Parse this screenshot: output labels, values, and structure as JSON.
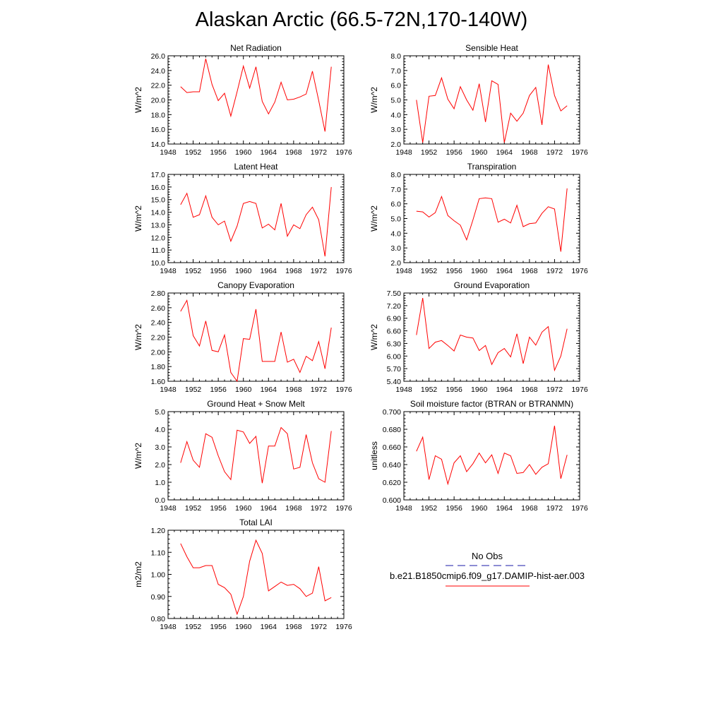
{
  "title": "Alaskan Arctic (66.5-72N,170-140W)",
  "legend": {
    "obs_label": "No Obs",
    "obs_color": "#1a1aa8",
    "model_label": "b.e21.B1850cmip6.f09_g17.DAMIP-hist-aer.003",
    "model_color": "#ff0000"
  },
  "chart_data": [
    {
      "type": "line",
      "title": "Net Radiation",
      "ylabel": "W/m^2",
      "xlim": [
        1948,
        1976
      ],
      "ylim": [
        14.0,
        26.0
      ],
      "xticks": [
        "1948",
        "1952",
        "1956",
        "1960",
        "1964",
        "1968",
        "1972",
        "1976"
      ],
      "yticks": [
        "14.0",
        "16.0",
        "18.0",
        "20.0",
        "22.0",
        "24.0",
        "26.0"
      ],
      "x": [
        1950,
        1951,
        1952,
        1953,
        1954,
        1955,
        1956,
        1957,
        1958,
        1959,
        1960,
        1961,
        1962,
        1963,
        1964,
        1965,
        1966,
        1967,
        1968,
        1969,
        1970,
        1971,
        1972,
        1973,
        1974
      ],
      "series": [
        {
          "name": "b.e21.B1850cmip6.f09_g17.DAMIP-hist-aer.003",
          "values": [
            21.8,
            21.0,
            21.1,
            21.1,
            25.6,
            22.1,
            19.9,
            20.9,
            17.8,
            21.1,
            24.6,
            21.6,
            24.5,
            19.8,
            18.1,
            19.7,
            22.4,
            20.0,
            20.1,
            20.4,
            20.8,
            23.9,
            19.9,
            15.7,
            24.5
          ]
        }
      ]
    },
    {
      "type": "line",
      "title": "Sensible Heat",
      "ylabel": "W/m^2",
      "xlim": [
        1948,
        1976
      ],
      "ylim": [
        2.0,
        8.0
      ],
      "xticks": [
        "1948",
        "1952",
        "1956",
        "1960",
        "1964",
        "1968",
        "1972",
        "1976"
      ],
      "yticks": [
        "2.0",
        "3.0",
        "4.0",
        "5.0",
        "6.0",
        "7.0",
        "8.0"
      ],
      "x": [
        1950,
        1951,
        1952,
        1953,
        1954,
        1955,
        1956,
        1957,
        1958,
        1959,
        1960,
        1961,
        1962,
        1963,
        1964,
        1965,
        1966,
        1967,
        1968,
        1969,
        1970,
        1971,
        1972,
        1973,
        1974
      ],
      "series": [
        {
          "name": "b.e21.B1850cmip6.f09_g17.DAMIP-hist-aer.003",
          "values": [
            5.0,
            2.1,
            5.25,
            5.3,
            6.5,
            5.05,
            4.4,
            5.9,
            5.0,
            4.3,
            6.1,
            3.5,
            6.3,
            6.05,
            2.1,
            4.1,
            3.55,
            4.1,
            5.3,
            5.85,
            3.3,
            7.4,
            5.3,
            4.25,
            4.6
          ]
        }
      ]
    },
    {
      "type": "line",
      "title": "Latent Heat",
      "ylabel": "W/m^2",
      "xlim": [
        1948,
        1976
      ],
      "ylim": [
        10.0,
        17.0
      ],
      "xticks": [
        "1948",
        "1952",
        "1956",
        "1960",
        "1964",
        "1968",
        "1972",
        "1976"
      ],
      "yticks": [
        "10.0",
        "11.0",
        "12.0",
        "13.0",
        "14.0",
        "15.0",
        "16.0",
        "17.0"
      ],
      "x": [
        1950,
        1951,
        1952,
        1953,
        1954,
        1955,
        1956,
        1957,
        1958,
        1959,
        1960,
        1961,
        1962,
        1963,
        1964,
        1965,
        1966,
        1967,
        1968,
        1969,
        1970,
        1971,
        1972,
        1973,
        1974
      ],
      "series": [
        {
          "name": "b.e21.B1850cmip6.f09_g17.DAMIP-hist-aer.003",
          "values": [
            14.6,
            15.5,
            13.6,
            13.8,
            15.3,
            13.6,
            13.0,
            13.3,
            11.7,
            12.9,
            14.7,
            14.85,
            14.7,
            12.75,
            13.05,
            12.6,
            14.7,
            12.1,
            13.0,
            12.7,
            13.8,
            14.4,
            13.4,
            10.5,
            16.0
          ]
        }
      ]
    },
    {
      "type": "line",
      "title": "Transpiration",
      "ylabel": "W/m^2",
      "xlim": [
        1948,
        1976
      ],
      "ylim": [
        2.0,
        8.0
      ],
      "xticks": [
        "1948",
        "1952",
        "1956",
        "1960",
        "1964",
        "1968",
        "1972",
        "1976"
      ],
      "yticks": [
        "2.0",
        "3.0",
        "4.0",
        "5.0",
        "6.0",
        "7.0",
        "8.0"
      ],
      "x": [
        1950,
        1951,
        1952,
        1953,
        1954,
        1955,
        1956,
        1957,
        1958,
        1959,
        1960,
        1961,
        1962,
        1963,
        1964,
        1965,
        1966,
        1967,
        1968,
        1969,
        1970,
        1971,
        1972,
        1973,
        1974
      ],
      "series": [
        {
          "name": "b.e21.B1850cmip6.f09_g17.DAMIP-hist-aer.003",
          "values": [
            5.5,
            5.45,
            5.1,
            5.4,
            6.5,
            5.2,
            4.85,
            4.55,
            3.55,
            4.9,
            6.35,
            6.4,
            6.35,
            4.75,
            4.95,
            4.7,
            5.9,
            4.45,
            4.65,
            4.7,
            5.35,
            5.8,
            5.65,
            2.75,
            7.05
          ]
        }
      ]
    },
    {
      "type": "line",
      "title": "Canopy Evaporation",
      "ylabel": "W/m^2",
      "xlim": [
        1948,
        1976
      ],
      "ylim": [
        1.6,
        2.8
      ],
      "xticks": [
        "1948",
        "1952",
        "1956",
        "1960",
        "1964",
        "1968",
        "1972",
        "1976"
      ],
      "yticks": [
        "1.60",
        "1.80",
        "2.00",
        "2.20",
        "2.40",
        "2.60",
        "2.80"
      ],
      "x": [
        1950,
        1951,
        1952,
        1953,
        1954,
        1955,
        1956,
        1957,
        1958,
        1959,
        1960,
        1961,
        1962,
        1963,
        1964,
        1965,
        1966,
        1967,
        1968,
        1969,
        1970,
        1971,
        1972,
        1973,
        1974
      ],
      "series": [
        {
          "name": "b.e21.B1850cmip6.f09_g17.DAMIP-hist-aer.003",
          "values": [
            2.55,
            2.7,
            2.22,
            2.08,
            2.42,
            2.02,
            2.0,
            2.23,
            1.72,
            1.6,
            2.18,
            2.17,
            2.58,
            1.87,
            1.87,
            1.87,
            2.27,
            1.86,
            1.9,
            1.72,
            1.94,
            1.88,
            2.14,
            1.77,
            2.33
          ]
        }
      ]
    },
    {
      "type": "line",
      "title": "Ground Evaporation",
      "ylabel": "W/m^2",
      "xlim": [
        1948,
        1976
      ],
      "ylim": [
        5.4,
        7.5
      ],
      "xticks": [
        "1948",
        "1952",
        "1956",
        "1960",
        "1964",
        "1968",
        "1972",
        "1976"
      ],
      "yticks": [
        "5.40",
        "5.70",
        "6.00",
        "6.30",
        "6.60",
        "6.90",
        "7.20",
        "7.50"
      ],
      "x": [
        1950,
        1951,
        1952,
        1953,
        1954,
        1955,
        1956,
        1957,
        1958,
        1959,
        1960,
        1961,
        1962,
        1963,
        1964,
        1965,
        1966,
        1967,
        1968,
        1969,
        1970,
        1971,
        1972,
        1973,
        1974
      ],
      "series": [
        {
          "name": "b.e21.B1850cmip6.f09_g17.DAMIP-hist-aer.003",
          "values": [
            6.5,
            7.38,
            6.18,
            6.33,
            6.37,
            6.25,
            6.12,
            6.5,
            6.45,
            6.43,
            6.13,
            6.25,
            5.8,
            6.08,
            6.18,
            5.98,
            6.53,
            5.82,
            6.45,
            6.26,
            6.57,
            6.7,
            5.66,
            6.0,
            6.65
          ]
        }
      ]
    },
    {
      "type": "line",
      "title": "Ground Heat + Snow Melt",
      "ylabel": "W/m^2",
      "xlim": [
        1948,
        1976
      ],
      "ylim": [
        0.0,
        5.0
      ],
      "xticks": [
        "1948",
        "1952",
        "1956",
        "1960",
        "1964",
        "1968",
        "1972",
        "1976"
      ],
      "yticks": [
        "0.0",
        "1.0",
        "2.0",
        "3.0",
        "4.0",
        "5.0"
      ],
      "x": [
        1950,
        1951,
        1952,
        1953,
        1954,
        1955,
        1956,
        1957,
        1958,
        1959,
        1960,
        1961,
        1962,
        1963,
        1964,
        1965,
        1966,
        1967,
        1968,
        1969,
        1970,
        1971,
        1972,
        1973,
        1974
      ],
      "series": [
        {
          "name": "b.e21.B1850cmip6.f09_g17.DAMIP-hist-aer.003",
          "values": [
            2.1,
            3.3,
            2.25,
            1.85,
            3.75,
            3.55,
            2.5,
            1.6,
            1.15,
            3.95,
            3.85,
            3.2,
            3.6,
            0.95,
            3.05,
            3.05,
            4.1,
            3.75,
            1.75,
            1.85,
            3.7,
            2.1,
            1.2,
            1.0,
            3.9
          ]
        }
      ]
    },
    {
      "type": "line",
      "title": "Soil moisture factor (BTRAN or BTRANMN)",
      "ylabel": "unitless",
      "xlim": [
        1948,
        1976
      ],
      "ylim": [
        0.6,
        0.7
      ],
      "xticks": [
        "1948",
        "1952",
        "1956",
        "1960",
        "1964",
        "1968",
        "1972",
        "1976"
      ],
      "yticks": [
        "0.600",
        "0.620",
        "0.640",
        "0.660",
        "0.680",
        "0.700"
      ],
      "x": [
        1950,
        1951,
        1952,
        1953,
        1954,
        1955,
        1956,
        1957,
        1958,
        1959,
        1960,
        1961,
        1962,
        1963,
        1964,
        1965,
        1966,
        1967,
        1968,
        1969,
        1970,
        1971,
        1972,
        1973,
        1974
      ],
      "series": [
        {
          "name": "b.e21.B1850cmip6.f09_g17.DAMIP-hist-aer.003",
          "values": [
            0.655,
            0.671,
            0.623,
            0.65,
            0.646,
            0.618,
            0.642,
            0.65,
            0.632,
            0.641,
            0.653,
            0.642,
            0.651,
            0.63,
            0.653,
            0.65,
            0.63,
            0.631,
            0.64,
            0.629,
            0.637,
            0.641,
            0.684,
            0.624,
            0.651
          ]
        }
      ]
    },
    {
      "type": "line",
      "title": "Total LAI",
      "ylabel": "m2/m2",
      "xlim": [
        1948,
        1976
      ],
      "ylim": [
        0.8,
        1.2
      ],
      "xticks": [
        "1948",
        "1952",
        "1956",
        "1960",
        "1964",
        "1968",
        "1972",
        "1976"
      ],
      "yticks": [
        "0.80",
        "0.90",
        "1.00",
        "1.10",
        "1.20"
      ],
      "x": [
        1950,
        1951,
        1952,
        1953,
        1954,
        1955,
        1956,
        1957,
        1958,
        1959,
        1960,
        1961,
        1962,
        1963,
        1964,
        1965,
        1966,
        1967,
        1968,
        1969,
        1970,
        1971,
        1972,
        1973,
        1974
      ],
      "series": [
        {
          "name": "b.e21.B1850cmip6.f09_g17.DAMIP-hist-aer.003",
          "values": [
            1.14,
            1.08,
            1.03,
            1.03,
            1.04,
            1.04,
            0.955,
            0.94,
            0.91,
            0.82,
            0.9,
            1.06,
            1.155,
            1.095,
            0.925,
            0.945,
            0.965,
            0.95,
            0.955,
            0.935,
            0.9,
            0.915,
            1.035,
            0.88,
            0.895
          ]
        }
      ]
    }
  ]
}
